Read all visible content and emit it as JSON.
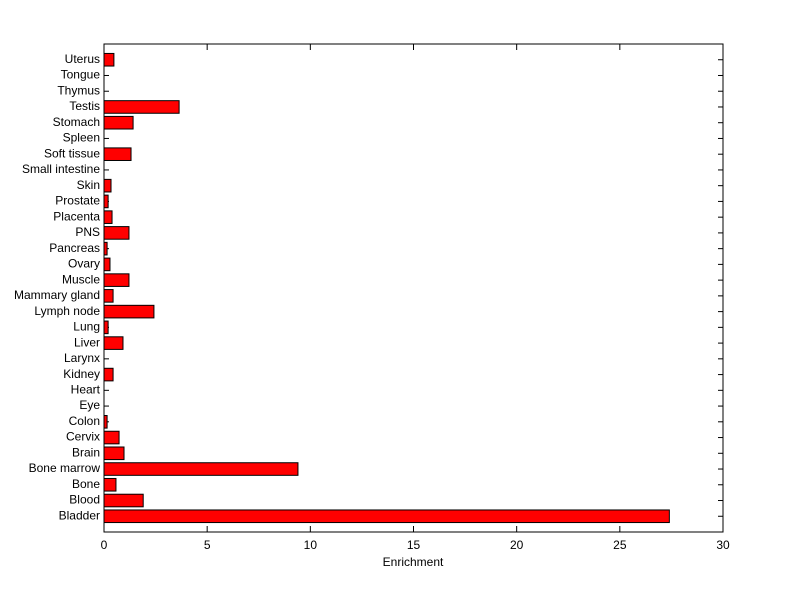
{
  "chart_data": {
    "type": "hbar",
    "x_label": "Enrichment",
    "categories": [
      "Bladder",
      "Blood",
      "Bone",
      "Bone marrow",
      "Brain",
      "Cervix",
      "Colon",
      "Eye",
      "Heart",
      "Kidney",
      "Larynx",
      "Liver",
      "Lung",
      "Lymph node",
      "Mammary gland",
      "Muscle",
      "Ovary",
      "Pancreas",
      "PNS",
      "Placenta",
      "Prostate",
      "Skin",
      "Small intestine",
      "Soft tissue",
      "Spleen",
      "Stomach",
      "Testis",
      "Thymus",
      "Tongue",
      "Uterus"
    ],
    "values": [
      27.4,
      1.9,
      0.58,
      9.4,
      0.97,
      0.73,
      0.15,
      0,
      0,
      0.44,
      0,
      0.92,
      0.2,
      2.42,
      0.44,
      1.21,
      0.29,
      0.15,
      1.21,
      0.39,
      0.2,
      0.34,
      0,
      1.31,
      0,
      1.41,
      3.64,
      0,
      0,
      0.48
    ],
    "color": "#ff0000",
    "xlim": [
      0,
      30
    ],
    "xticks": [
      0,
      5,
      10,
      15,
      20,
      25,
      30
    ]
  }
}
